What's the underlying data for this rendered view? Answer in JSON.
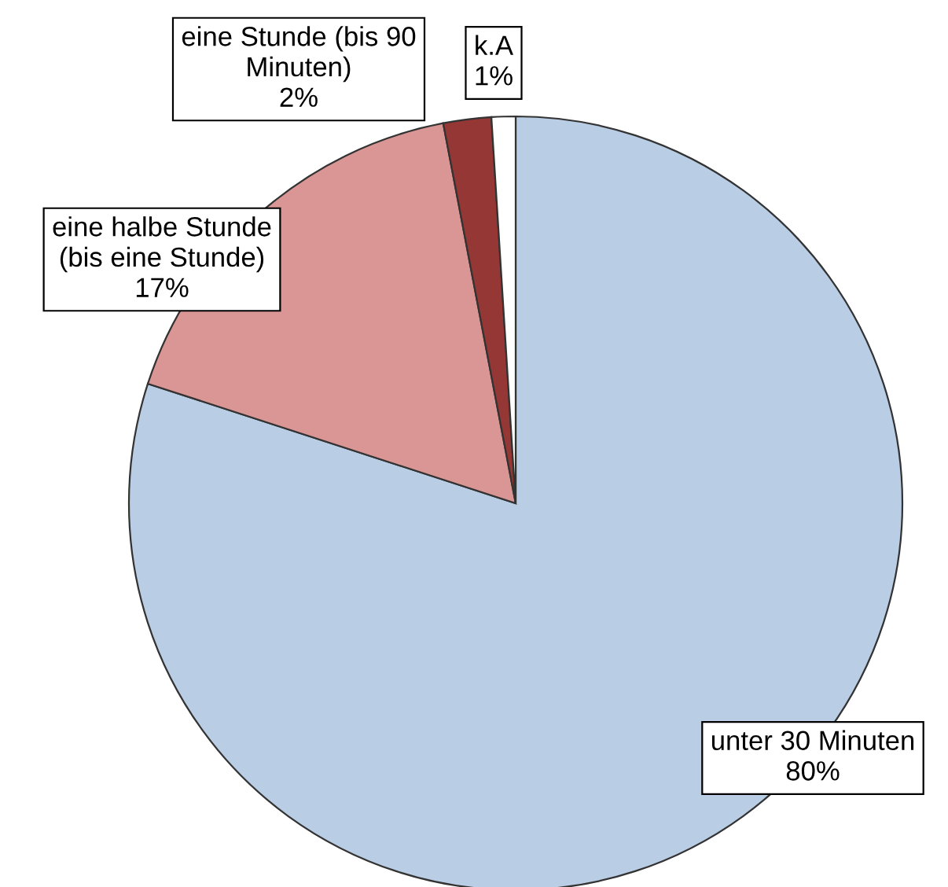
{
  "chart_data": {
    "type": "pie",
    "categories": [
      "unter 30 Minuten",
      "eine halbe Stunde\n(bis eine Stunde)",
      "eine Stunde (bis 90\nMinuten)",
      "k.A"
    ],
    "values": [
      80,
      17,
      2,
      1
    ],
    "value_labels": [
      "80%",
      "17%",
      "2%",
      "1%"
    ],
    "colors": [
      "#b9cde5",
      "#d99694",
      "#953735",
      "#ffffff"
    ],
    "legend": false
  }
}
